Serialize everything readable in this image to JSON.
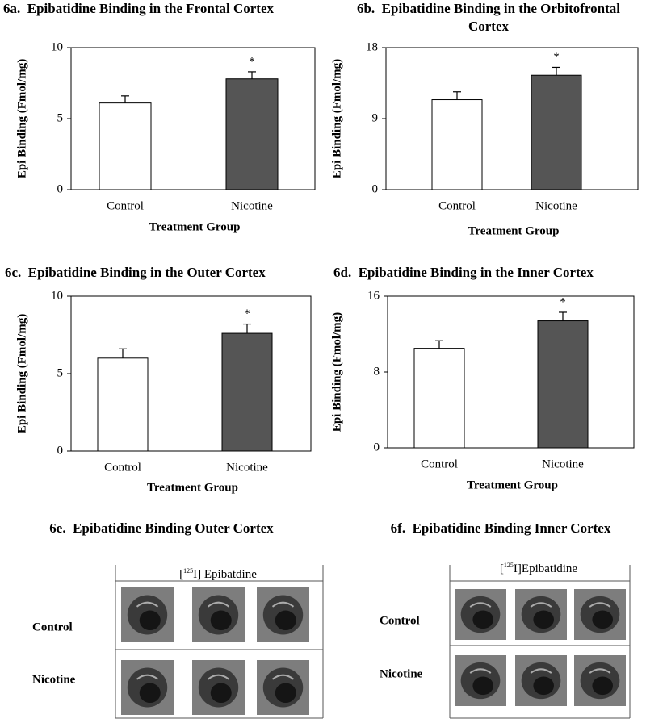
{
  "chart_data": [
    {
      "type": "bar",
      "title": "6a.  Epibatidine Binding in the Frontal Cortex",
      "ylabel": "Epi Binding (Fmol/mg)",
      "xlabel": "Treatment Group",
      "categories": [
        "Control",
        "Nicotine"
      ],
      "values": [
        6.1,
        7.8
      ],
      "errors": [
        0.5,
        0.5
      ],
      "colors": [
        "#ffffff",
        "#555555"
      ],
      "significance": [
        null,
        "*"
      ],
      "ylim": [
        0,
        10
      ],
      "yticks": [
        0,
        5,
        10
      ]
    },
    {
      "type": "bar",
      "title": "6b.  Epibatidine Binding in the Orbitofrontal Cortex",
      "ylabel": "Epi Binding (Fmol/mg)",
      "xlabel": "Treatment Group",
      "categories": [
        "Control",
        "Nicotine"
      ],
      "values": [
        11.4,
        14.5
      ],
      "errors": [
        1.0,
        1.0
      ],
      "colors": [
        "#ffffff",
        "#555555"
      ],
      "significance": [
        null,
        "*"
      ],
      "ylim": [
        0,
        18
      ],
      "yticks": [
        0,
        9,
        18
      ]
    },
    {
      "type": "bar",
      "title": "6c.  Epibatidine Binding in the Outer Cortex",
      "ylabel": "Epi Binding (Fmol/mg)",
      "xlabel": "Treatment Group",
      "categories": [
        "Control",
        "Nicotine"
      ],
      "values": [
        6.0,
        7.6
      ],
      "errors": [
        0.6,
        0.6
      ],
      "colors": [
        "#ffffff",
        "#555555"
      ],
      "significance": [
        null,
        "*"
      ],
      "ylim": [
        0,
        10
      ],
      "yticks": [
        0,
        5,
        10
      ]
    },
    {
      "type": "bar",
      "title": "6d.  Epibatidine Binding in the Inner Cortex",
      "ylabel": "Epi Binding (Fmol/mg)",
      "xlabel": "Treatment Group",
      "categories": [
        "Control",
        "Nicotine"
      ],
      "values": [
        10.5,
        13.4
      ],
      "errors": [
        0.8,
        0.9
      ],
      "colors": [
        "#ffffff",
        "#555555"
      ],
      "significance": [
        null,
        "*"
      ],
      "ylim": [
        0,
        16
      ],
      "yticks": [
        0,
        8,
        16
      ]
    }
  ],
  "image_panels": [
    {
      "title": "6e.  Epibatidine Binding Outer Cortex",
      "label": {
        "prefix": "[",
        "superscript": "125",
        "suffix": "I] Epibatdine"
      },
      "rows": [
        "Control",
        "Nicotine"
      ]
    },
    {
      "title": "6f.  Epibatidine Binding Inner Cortex",
      "label": {
        "prefix": "[",
        "superscript": "125",
        "suffix": "I]Epibatidine"
      },
      "rows": [
        "Control",
        "Nicotine"
      ]
    }
  ]
}
